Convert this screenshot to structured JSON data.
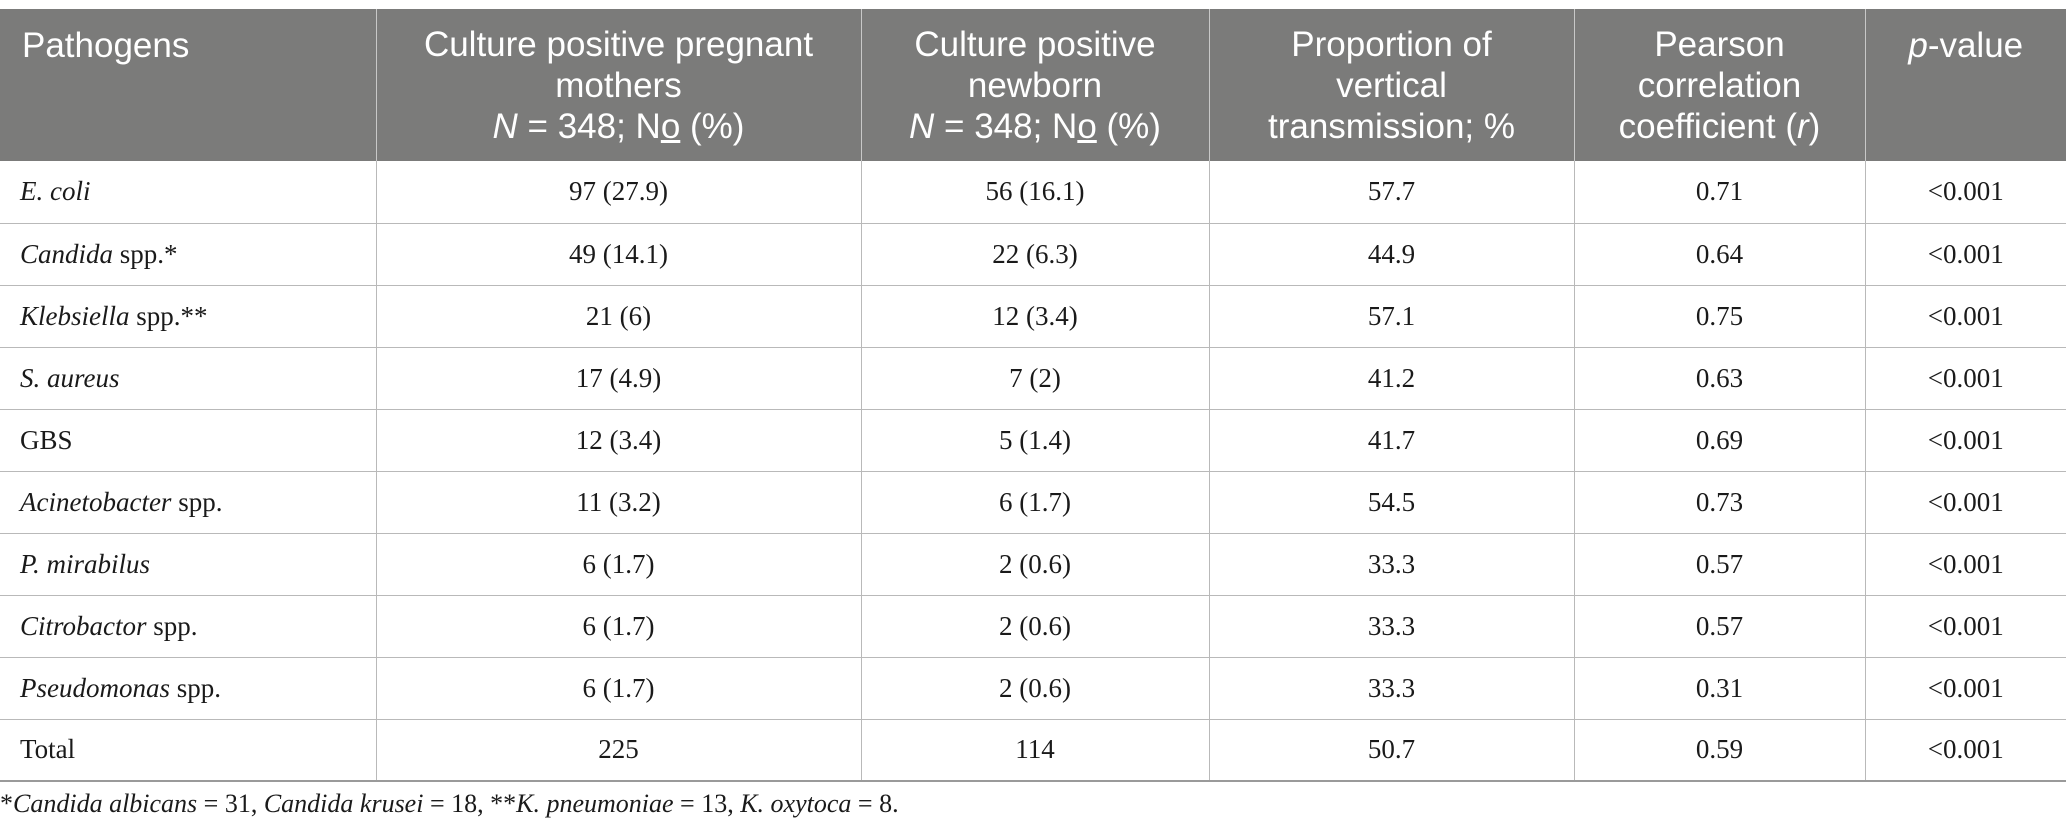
{
  "table": {
    "headers": {
      "pathogens": "Pathogens",
      "mothers": {
        "line1": "Culture positive pregnant",
        "line2": "mothers",
        "n_var": "N",
        "n_eq": " = 348; N",
        "n_o": "o",
        "n_pct": " (%)"
      },
      "newborn": {
        "line1": "Culture positive",
        "line2": "newborn",
        "n_var": "N",
        "n_eq": " = 348; N",
        "n_o": "o",
        "n_pct": " (%)"
      },
      "proportion": {
        "line1": "Proportion of",
        "line2": "vertical",
        "line3": "transmission; %"
      },
      "pearson": {
        "line1": "Pearson",
        "line2": "correlation",
        "line3_pre": "coefficient (",
        "line3_var": "r",
        "line3_post": ")"
      },
      "pvalue": {
        "var": "p",
        "text": "-value"
      }
    },
    "rows": [
      {
        "name_italic": "E. coli",
        "name_rest": "",
        "mothers": "97 (27.9)",
        "newborn": "56 (16.1)",
        "proportion": "57.7",
        "r": "0.71",
        "p": "<0.001"
      },
      {
        "name_italic": "Candida",
        "name_rest": " spp.*",
        "mothers": "49 (14.1)",
        "newborn": "22 (6.3)",
        "proportion": "44.9",
        "r": "0.64",
        "p": "<0.001"
      },
      {
        "name_italic": "Klebsiella",
        "name_rest": " spp.**",
        "mothers": "21 (6)",
        "newborn": "12 (3.4)",
        "proportion": "57.1",
        "r": "0.75",
        "p": "<0.001"
      },
      {
        "name_italic": "S. aureus",
        "name_rest": "",
        "mothers": "17 (4.9)",
        "newborn": "7 (2)",
        "proportion": "41.2",
        "r": "0.63",
        "p": "<0.001"
      },
      {
        "name_italic": "",
        "name_rest": "GBS",
        "mothers": "12 (3.4)",
        "newborn": "5 (1.4)",
        "proportion": "41.7",
        "r": "0.69",
        "p": "<0.001"
      },
      {
        "name_italic": "Acinetobacter",
        "name_rest": " spp.",
        "mothers": "11 (3.2)",
        "newborn": "6 (1.7)",
        "proportion": "54.5",
        "r": "0.73",
        "p": "<0.001"
      },
      {
        "name_italic": "P. mirabilus",
        "name_rest": "",
        "mothers": "6 (1.7)",
        "newborn": "2 (0.6)",
        "proportion": "33.3",
        "r": "0.57",
        "p": "<0.001"
      },
      {
        "name_italic": "Citrobactor",
        "name_rest": " spp.",
        "mothers": "6 (1.7)",
        "newborn": "2 (0.6)",
        "proportion": "33.3",
        "r": "0.57",
        "p": "<0.001"
      },
      {
        "name_italic": "Pseudomonas",
        "name_rest": " spp.",
        "mothers": "6 (1.7)",
        "newborn": "2 (0.6)",
        "proportion": "33.3",
        "r": "0.31",
        "p": "<0.001"
      },
      {
        "name_italic": "",
        "name_rest": "Total",
        "mothers": "225",
        "newborn": "114",
        "proportion": "50.7",
        "r": "0.59",
        "p": "<0.001"
      }
    ]
  },
  "footnote": {
    "star1": "*",
    "candida_albicans": "Candida albicans",
    "val1": " = 31, ",
    "candida_krusei": "Candida krusei",
    "val2": " = 18, **",
    "k_pneumoniae": "K. pneumoniae",
    "val3": " = 13, ",
    "k_oxytoca": "K. oxytoca",
    "val4": " = 8."
  }
}
